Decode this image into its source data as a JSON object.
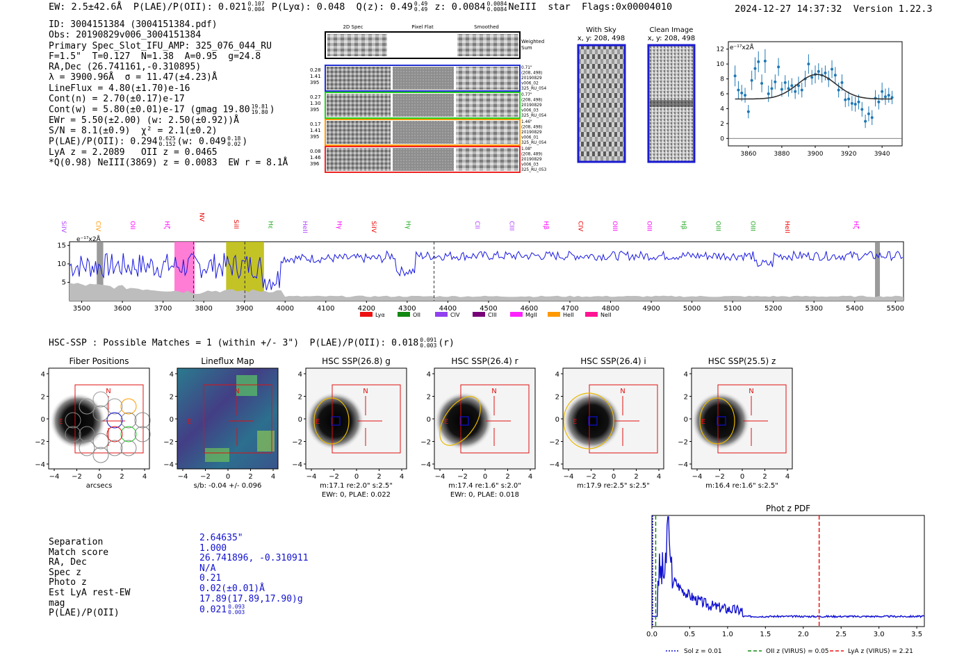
{
  "header": {
    "left_text": "EW: 2.5±42.6Å  P(LAE)/P(OII): 0.021",
    "plae_hi": "0.107",
    "plae_lo": "0.004",
    "plya_text": "P(Lyα): 0.048  Q(z): 0.49",
    "qz_hi": "0.49",
    "qz_lo": "0.49",
    "z_text": "z: 0.0084",
    "z_hi": "0.0084",
    "z_lo": "0.0084",
    "tail_text": "NeIII  star  Flags:0x00004010",
    "datetime": "2024-12-27 14:37:32",
    "version": "Version 1.22.3"
  },
  "info": {
    "id": "ID: 3004151384 (3004151384.pdf)",
    "obs": "Obs: 20190829v006_3004151384",
    "primary": "Primary Spec_Slot_IFU_AMP: 325_076_044_RU",
    "params": "F=1.5\"  T=0.127  N=1.38  A=0.95  g=24.8",
    "radec": "RA,Dec (26.741161,-0.310895)",
    "lambda": "λ = 3900.96Å  σ = 11.47(±4.23)Å",
    "lineflux": "LineFlux = 4.80(±1.70)e-16",
    "cont_n": "Cont(n) = 2.70(±0.17)e-17",
    "cont_w": "Cont(w) = 5.80(±0.01)e-17 (gmag 19.80",
    "gmag_hi": "19.81",
    "gmag_lo": "19.80",
    "ewr": "EWr = 5.50(±2.00) (w: 2.50(±0.92))Å",
    "sn": "S/N = 8.1(±0.9)  χ² = 2.1(±0.2)",
    "plae_line": "P(LAE)/P(OII): 0.294",
    "plae_hi": "0.625",
    "plae_lo": "0.152",
    "plae_w": "(w: 0.049",
    "plae_w_hi": "0.18",
    "plae_w_lo": "0.02",
    "lya": "LyA z = 2.2089   OII z = 0.0465",
    "q_line": "*Q(0.98) NeIII(3869) z = 0.0083  EW r = 8.1Å"
  },
  "cutouts": {
    "col_headers": [
      "2D Spec",
      "Pixel Flat",
      "Smoothed"
    ],
    "weighted_sum": "Weighted Sum",
    "rows": [
      {
        "left": [
          "0.28",
          "1.41",
          "395"
        ],
        "right": [
          "0.71\"",
          "(208, 498)",
          "20190829",
          "v006_02",
          "325_RU_054"
        ],
        "color": "#1f2fd0"
      },
      {
        "left": [
          "0.27",
          "1.30",
          "395"
        ],
        "right": [
          "0.77\"",
          "(208, 498)",
          "20190829",
          "v006_03",
          "325_RU_054"
        ],
        "color": "#22cc22"
      },
      {
        "left": [
          "0.17",
          "1.41",
          "395"
        ],
        "right": [
          "1.46\"",
          "(208, 498)",
          "20190829",
          "v006_01",
          "325_RU_054"
        ],
        "color": "#ff9900"
      },
      {
        "left": [
          "0.08",
          "1.46",
          "396"
        ],
        "right": [
          "1.08\"",
          "(208, 489)",
          "20190829",
          "v006_03",
          "325_RU_053"
        ],
        "color": "#ee2222"
      }
    ],
    "with_sky_title": "With Sky",
    "with_sky_coords": "x, y: 208, 498",
    "clean_title": "Clean Image",
    "clean_coords": "x, y: 208, 498"
  },
  "line_fit": {
    "ylabel": "e⁻¹⁷x2Å",
    "yticks": [
      "0",
      "2",
      "4",
      "6",
      "8",
      "10",
      "12"
    ],
    "xticks": [
      "3860",
      "3880",
      "3900",
      "3920",
      "3940"
    ]
  },
  "spectrum": {
    "ylabel": "e⁻¹⁷x2Å",
    "yticks": [
      "5",
      "10",
      "15"
    ],
    "xticks": [
      "3500",
      "3600",
      "3700",
      "3800",
      "3900",
      "4000",
      "4100",
      "4200",
      "4300",
      "4400",
      "4500",
      "4600",
      "4700",
      "4800",
      "4900",
      "5000",
      "5100",
      "5200",
      "5300",
      "5400",
      "5500"
    ],
    "line_labels": [
      {
        "t": "SiIV",
        "c": "#b040ff"
      },
      {
        "t": "CIV",
        "c": "#ff9900"
      },
      {
        "t": "OII",
        "c": "#ff00ff"
      },
      {
        "t": "Hζ",
        "c": "#ff00ff"
      },
      {
        "t": "NV",
        "c": "#ee0000"
      },
      {
        "t": "SiII",
        "c": "#ee0000"
      },
      {
        "t": "Hε",
        "c": "#22aa22"
      },
      {
        "t": "HeII",
        "c": "#b040ff"
      },
      {
        "t": "Hγ",
        "c": "#ff00ff"
      },
      {
        "t": "SiIV",
        "c": "#ee0000"
      },
      {
        "t": "Hγ",
        "c": "#22aa22"
      },
      {
        "t": "CIII",
        "c": "#ff9900"
      },
      {
        "t": "CII",
        "c": "#b040ff"
      },
      {
        "t": "CIII",
        "c": "#b040ff"
      },
      {
        "t": "Hβ",
        "c": "#ff00ff"
      },
      {
        "t": "CIV",
        "c": "#ee0000"
      },
      {
        "t": "OIII",
        "c": "#ff00ff"
      },
      {
        "t": "OIII",
        "c": "#ff00ff"
      },
      {
        "t": "Hβ",
        "c": "#22aa22"
      },
      {
        "t": "OIII",
        "c": "#22aa22"
      },
      {
        "t": "OIII",
        "c": "#22aa22"
      },
      {
        "t": "HeII",
        "c": "#ee0000"
      },
      {
        "t": "OII",
        "c": "#ff00ff"
      },
      {
        "t": "Hζ",
        "c": "#ff00ff"
      }
    ],
    "legend": [
      {
        "t": "Lyα",
        "c": "#ee1111"
      },
      {
        "t": "OII",
        "c": "#118811"
      },
      {
        "t": "CIV",
        "c": "#9040ee"
      },
      {
        "t": "CIII",
        "c": "#770077"
      },
      {
        "t": "MgII",
        "c": "#ff22ff"
      },
      {
        "t": "HeII",
        "c": "#ff9900"
      },
      {
        "t": "NeII",
        "c": "#ff1493"
      }
    ]
  },
  "hsc": {
    "line": "HSC-SSP : Possible Matches = 1 (within +/- 3\")  P(LAE)/P(OII): 0.018",
    "hi": "0.091",
    "lo": "0.003",
    "suffix": "(r)",
    "panels": [
      {
        "title": "Fiber Positions",
        "sub1": "arcsecs",
        "sub2": ""
      },
      {
        "title": "Lineflux Map",
        "sub1": "s/b: -0.04 +/- 0.096",
        "sub2": ""
      },
      {
        "title": "HSC SSP(26.8) g",
        "sub1": "m:17.1  re:2.0\"  s:2.5\"",
        "sub2": "EWr: 0, PLAE: 0.022"
      },
      {
        "title": "HSC SSP(26.4) r",
        "sub1": "m:17.4  re:1.6\"  s:2.0\"",
        "sub2": "EWr: 0, PLAE: 0.018"
      },
      {
        "title": "HSC SSP(26.4) i",
        "sub1": "m:17.9  re:2.5\"  s:2.5\"",
        "sub2": ""
      },
      {
        "title": "HSC SSP(25.5) z",
        "sub1": "m:16.4  re:1.6\"  s:2.5\"",
        "sub2": ""
      }
    ],
    "yticks": [
      "4",
      "2",
      "0",
      "−2",
      "−4"
    ],
    "xticks": [
      "−4",
      "−2",
      "0",
      "2",
      "4"
    ],
    "north": "N",
    "east": "E"
  },
  "bottom": {
    "labels": [
      "Separation",
      "Match score",
      "RA, Dec",
      "Spec z",
      "Photo z",
      "Est LyA rest-EW",
      "mag",
      "P(LAE)/P(OII)"
    ],
    "values": [
      "2.64635\"",
      "1.000",
      "26.741896, -0.310911",
      "N/A",
      "0.21",
      "0.02(±0.01)Å",
      "17.89(17.89,17.90)g",
      "0.021"
    ],
    "plae_hi": "0.093",
    "plae_lo": "0.003"
  },
  "chart_data": [
    {
      "type": "scatter",
      "title": "",
      "ylabel": "e⁻¹⁷x2Å",
      "xlim": [
        3848,
        3952
      ],
      "ylim": [
        -1,
        13
      ],
      "x": [
        3852,
        3854,
        3856,
        3858,
        3860,
        3862,
        3864,
        3866,
        3868,
        3870,
        3872,
        3874,
        3876,
        3878,
        3880,
        3882,
        3884,
        3886,
        3888,
        3890,
        3892,
        3894,
        3896,
        3898,
        3900,
        3902,
        3904,
        3906,
        3908,
        3910,
        3912,
        3914,
        3916,
        3918,
        3920,
        3922,
        3924,
        3926,
        3928,
        3930,
        3932,
        3934,
        3936,
        3938,
        3940,
        3942,
        3944,
        3946
      ],
      "y": [
        8.4,
        6.5,
        6.1,
        5.8,
        3.6,
        7.8,
        9.4,
        10.3,
        7.4,
        10.4,
        6.0,
        6.7,
        7.6,
        9.6,
        6.6,
        7.5,
        6.7,
        7.1,
        6.3,
        7.1,
        6.5,
        8.0,
        10.0,
        8.2,
        8.6,
        9.0,
        8.5,
        8.8,
        8.0,
        9.3,
        8.5,
        6.5,
        7.5,
        5.2,
        5.3,
        4.7,
        4.6,
        4.9,
        3.9,
        2.3,
        3.3,
        2.8,
        5.4,
        4.9,
        6.3,
        5.6,
        5.8,
        5.5
      ],
      "fit": {
        "type": "gaussian",
        "center": 3900.96,
        "sigma": 11.47,
        "baseline": 5.3,
        "peak": 8.6
      }
    },
    {
      "type": "line",
      "title": "",
      "ylabel": "e⁻¹⁷x2Å",
      "xlim": [
        3470,
        5520
      ],
      "ylim": [
        0,
        16
      ],
      "shaded_regions": [
        {
          "x0": 3537,
          "x1": 3553,
          "c": "#888888"
        },
        {
          "x0": 3728,
          "x1": 3778,
          "c": "#ff66cc"
        },
        {
          "x0": 3855,
          "x1": 3948,
          "c": "#b8b800"
        },
        {
          "x0": 5450,
          "x1": 5462,
          "c": "#888888"
        }
      ],
      "dashed_lines": [
        3775,
        3901,
        4366
      ]
    },
    {
      "type": "line",
      "title": "Phot z PDF",
      "xlim": [
        0,
        3.6
      ],
      "xticks": [
        "0.0",
        "0.5",
        "1.0",
        "1.5",
        "2.0",
        "2.5",
        "3.0",
        "3.5"
      ],
      "markers": [
        {
          "label": "Sol z = 0.01",
          "z": 0.01,
          "c": "#1010d0",
          "style": "dotted"
        },
        {
          "label": "OII z (VIRUS) = 0.05",
          "z": 0.05,
          "c": "#118811",
          "style": "dashed"
        },
        {
          "label": "LyA z (VIRUS) = 2.21",
          "z": 2.21,
          "c": "#ee1111",
          "style": "dashed"
        }
      ]
    }
  ]
}
